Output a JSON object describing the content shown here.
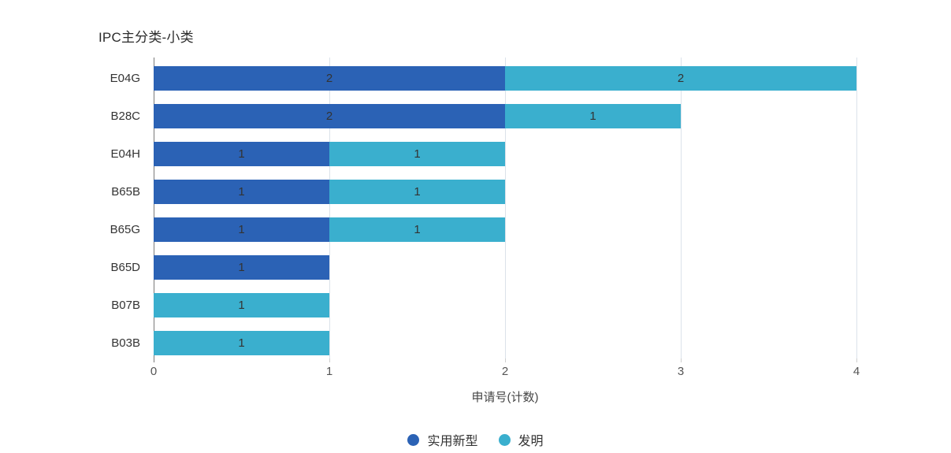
{
  "title": "IPC主分类-小类",
  "chart_data": {
    "type": "bar",
    "orientation": "horizontal",
    "stacked": true,
    "title": "IPC主分类-小类",
    "xlabel": "申请号(计数)",
    "categories": [
      "E04G",
      "B28C",
      "E04H",
      "B65B",
      "B65G",
      "B65D",
      "B07B",
      "B03B"
    ],
    "series": [
      {
        "name": "实用新型",
        "color": "#2B62B5",
        "values": [
          2,
          2,
          1,
          1,
          1,
          1,
          0,
          0
        ]
      },
      {
        "name": "发明",
        "color": "#3AAFCE",
        "values": [
          2,
          1,
          1,
          1,
          1,
          0,
          1,
          1
        ]
      }
    ],
    "totals": [
      4,
      3,
      2,
      2,
      2,
      1,
      1,
      1
    ],
    "xlim": [
      0,
      4
    ],
    "x_ticks": [
      "0",
      "1",
      "2",
      "3",
      "4"
    ],
    "grid": true,
    "legend_position": "bottom",
    "bar_label_color": "#333333",
    "gridline_color": "#dbe2ea",
    "axis_line_color": "#7a7a7a"
  }
}
